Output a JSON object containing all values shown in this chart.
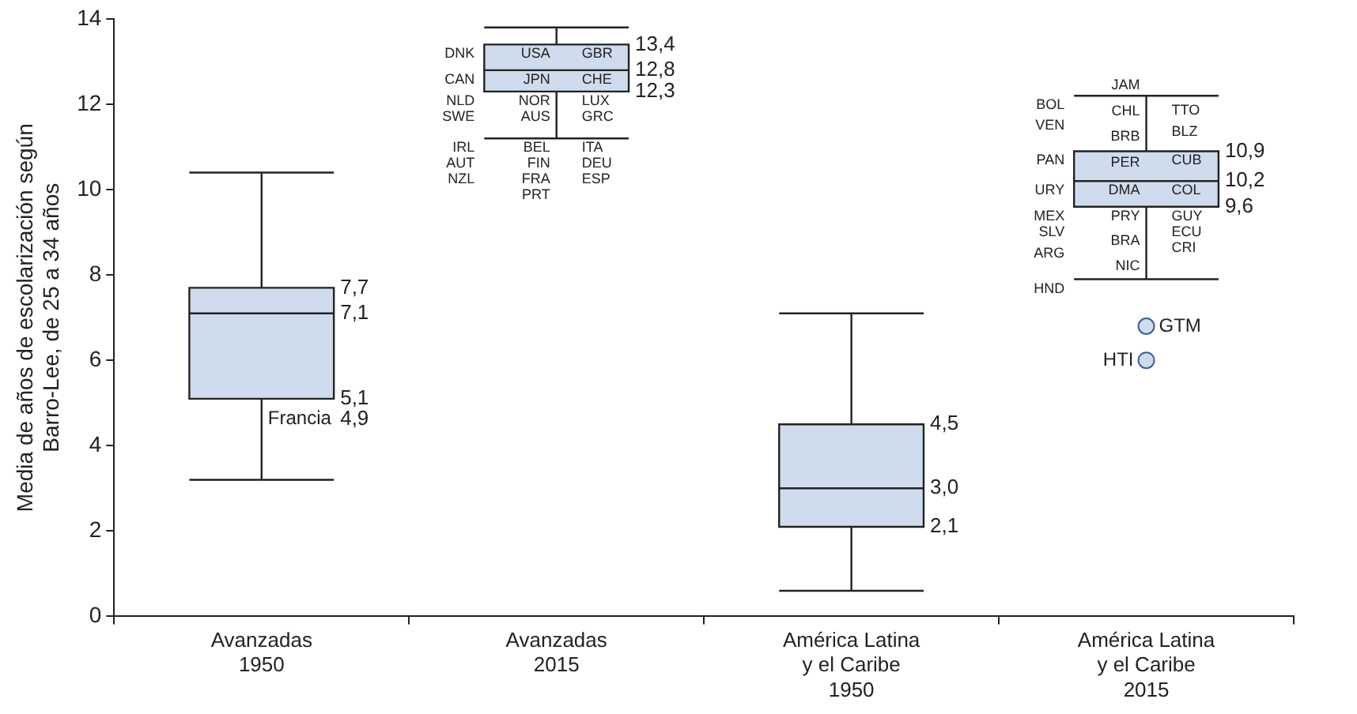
{
  "chart_data": {
    "type": "box",
    "ylabel": "Media de años de escolarización según Barro-Lee, de 25 a 34 años",
    "categories": [
      "Avanzadas 1950",
      "Avanzadas 2015",
      "América Latina y el Caribe 1950",
      "América Latina y el Caribe 2015"
    ],
    "series": [
      {
        "color": "#cfdcee",
        "boxes": [
          {
            "low": 3.2,
            "q1": 5.1,
            "median": 7.1,
            "q3": 7.7,
            "high": 10.4
          },
          {
            "low": 11.2,
            "q1": 12.3,
            "median": 12.8,
            "q3": 13.4,
            "high": 13.8
          },
          {
            "low": 0.6,
            "q1": 2.1,
            "median": 3.0,
            "q3": 4.5,
            "high": 7.1
          },
          {
            "low": 7.9,
            "q1": 9.6,
            "median": 10.2,
            "q3": 10.9,
            "high": 12.2
          }
        ]
      },
      {
        "type": "scatter",
        "marker": "circle",
        "color": "#cfdcee",
        "x": [
          "América Latina y el Caribe 2015",
          "América Latina y el Caribe 2015"
        ],
        "values": [
          6.8,
          6.0
        ],
        "value_labels": [
          "GTM",
          "HTI"
        ]
      }
    ],
    "ylim": [
      0,
      14
    ],
    "yticks": [
      0,
      2,
      4,
      6,
      8,
      10,
      12,
      14
    ],
    "grid": false,
    "annotations": [
      "7,7",
      "7,1",
      "5,1",
      "4,9",
      "Francia",
      "13,4",
      "12,8",
      "12,3",
      "USA",
      "JPN",
      "NOR",
      "AUS",
      "BEL",
      "FIN",
      "FRA",
      "PRT",
      "DNK",
      "CAN",
      "NLD",
      "SWE",
      "IRL",
      "AUT",
      "NZL",
      "GBR",
      "CHE",
      "LUX",
      "GRC",
      "ITA",
      "DEU",
      "ESP",
      "4,5",
      "3,0",
      "2,1",
      "10,9",
      "10,2",
      "9,6",
      "JAM",
      "CHL",
      "BRB",
      "PER",
      "DMA",
      "PRY",
      "BRA",
      "NIC",
      "BOL",
      "VEN",
      "PAN",
      "URY",
      "MEX",
      "SLV",
      "ARG",
      "HND",
      "TTO",
      "BLZ",
      "CUB",
      "COL",
      "GUY",
      "ECU",
      "CRI"
    ]
  }
}
